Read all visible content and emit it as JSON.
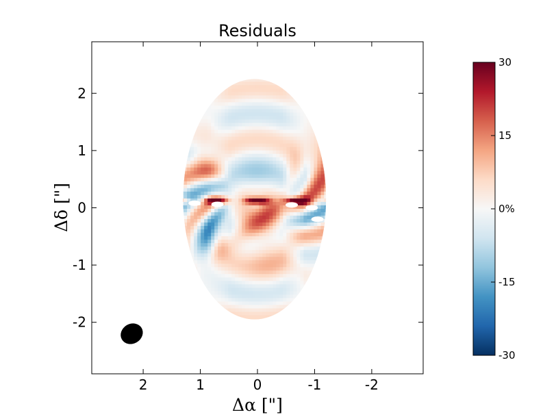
{
  "chart_data": {
    "type": "heatmap",
    "title": "Residuals",
    "xlabel": "Δα [\"]",
    "ylabel": "Δδ [\"]",
    "xlim": [
      2.9,
      -2.9
    ],
    "ylim": [
      -2.9,
      2.9
    ],
    "x_ticks": [
      2,
      1,
      0,
      -1,
      -2
    ],
    "x_tick_labels": [
      "2",
      "1",
      "0",
      "-1",
      "-2"
    ],
    "y_ticks": [
      2,
      1,
      0,
      -1,
      -2
    ],
    "y_tick_labels": [
      "2",
      "1",
      "0",
      "-1",
      "-2"
    ],
    "grid": false,
    "data_region": {
      "shape": "ellipse",
      "center": [
        0.05,
        0.15
      ],
      "semi_major_y": 2.1,
      "semi_minor_x": 1.25
    },
    "beam": {
      "center": [
        2.2,
        -2.2
      ],
      "major": 0.4,
      "minor": 0.33,
      "color": "#000000"
    },
    "colorbar": {
      "min": -30,
      "max": 30,
      "ticks": [
        30,
        15,
        0,
        -15,
        -30
      ],
      "tick_labels": [
        "30",
        "15",
        "0%",
        "-15",
        "-30"
      ],
      "colormap": "RdBu_r",
      "colors": [
        "#053061",
        "#2166ac",
        "#4393c3",
        "#92c5de",
        "#d1e5f0",
        "#f7f7f7",
        "#fddbc7",
        "#f4a582",
        "#d6604d",
        "#b2182b",
        "#67001f"
      ]
    }
  }
}
